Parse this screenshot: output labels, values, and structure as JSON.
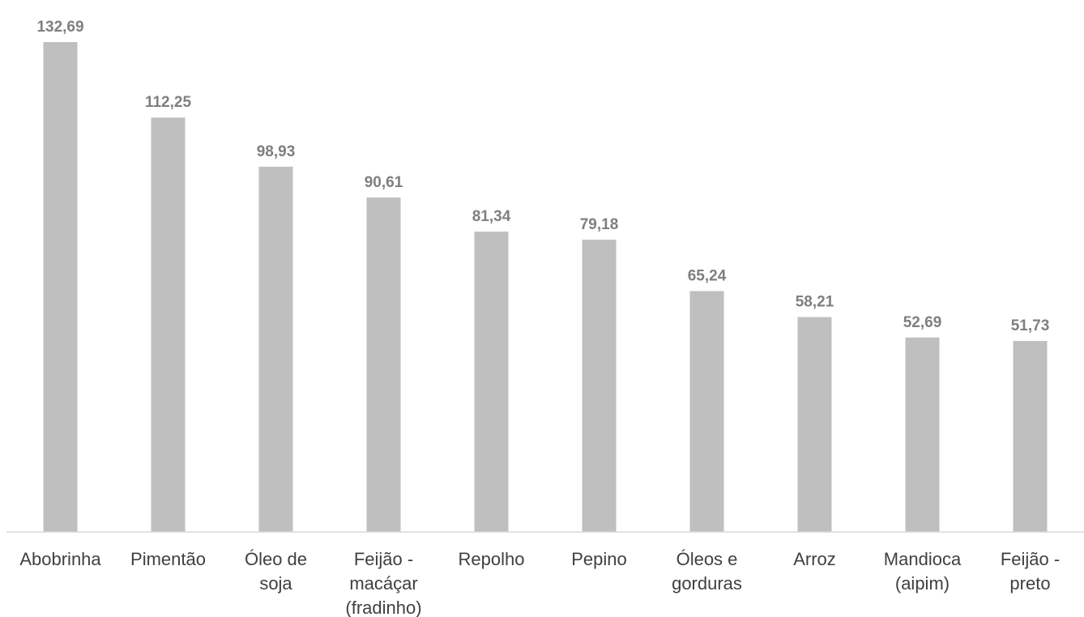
{
  "chart_data": {
    "type": "bar",
    "categories": [
      "Abobrinha",
      "Pimentão",
      "Óleo de soja",
      "Feijão - macáçar (fradinho)",
      "Repolho",
      "Pepino",
      "Óleos e gorduras",
      "Arroz",
      "Mandioca (aipim)",
      "Feijão - preto"
    ],
    "category_lines": [
      [
        "Abobrinha"
      ],
      [
        "Pimentão"
      ],
      [
        "Óleo de",
        "soja"
      ],
      [
        "Feijão -",
        "macáçar",
        "(fradinho)"
      ],
      [
        "Repolho"
      ],
      [
        "Pepino"
      ],
      [
        "Óleos e",
        "gorduras"
      ],
      [
        "Arroz"
      ],
      [
        "Mandioca",
        "(aipim)"
      ],
      [
        "Feijão -",
        "preto"
      ]
    ],
    "values": [
      132.69,
      112.25,
      98.93,
      90.61,
      81.34,
      79.18,
      65.24,
      58.21,
      52.69,
      51.73
    ],
    "value_labels": [
      "132,69",
      "112,25",
      "98,93",
      "90,61",
      "81,34",
      "79,18",
      "65,24",
      "58,21",
      "52,69",
      "51,73"
    ],
    "title": "",
    "xlabel": "",
    "ylabel": "",
    "ylim": [
      0,
      132.69
    ],
    "grid": false,
    "legend": "none",
    "colors": {
      "bar": "#bfbfbf",
      "value_label": "#7f7f7f",
      "category_label": "#404040",
      "axis": "#d9d9d9"
    }
  }
}
